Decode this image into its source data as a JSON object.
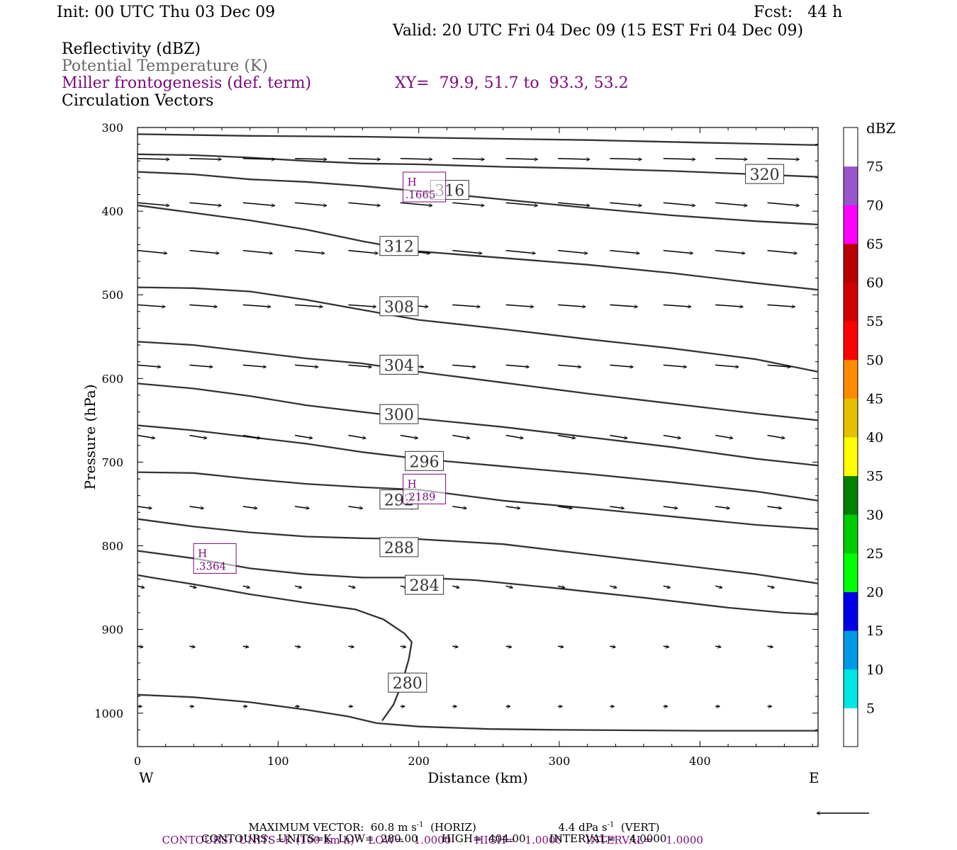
{
  "header": {
    "init": "Init: 00 UTC Thu 03 Dec 09",
    "fcst": "Fcst:   44 h",
    "valid": "Valid: 20 UTC Fri 04 Dec 09 (15 EST Fri 04 Dec 09)",
    "fields": [
      {
        "label": "Reflectivity (dBZ)",
        "color": "#000000"
      },
      {
        "label": "Potential Temperature (K)",
        "color": "#666666"
      },
      {
        "label": "Miller frontogenesis (def. term)",
        "color": "#7b0a7b"
      },
      {
        "label": "Circulation Vectors",
        "color": "#000000"
      }
    ],
    "xy": "XY=  79.9, 51.7 to  93.3, 53.2"
  },
  "footer": {
    "max_vector_prefix": "MAXIMUM VECTOR:  60.8 m s",
    "max_vector_horiz": "(HORIZ)",
    "max_vector_vert_prefix": "4.4 dPa s",
    "max_vector_vert_suffix": "(VERT)",
    "contours_purple": "CONTOURS:  UNITS=K (100 km h)",
    "contours_purple_tail": "  LOW=   1.0000       HIGH=   1.0000       INTERVAL=    1.0000",
    "contours_black": "CONTOURS:  UNITS=K  LOW=  280.00       HIGH=  404.00       INTERVAL=    4.0000",
    "exp": "-1"
  },
  "chart_data": {
    "type": "contour",
    "xlabel": "Distance (km)",
    "ylabel": "Pressure (hPa)",
    "x_ticks": [
      0,
      100,
      200,
      300,
      400
    ],
    "y_ticks": [
      300,
      400,
      500,
      600,
      700,
      800,
      900,
      1000
    ],
    "xlim": [
      0,
      484
    ],
    "ylim": [
      1040,
      300
    ],
    "x_end_labels": {
      "left": "W",
      "right": "E"
    },
    "theta_contours": [
      {
        "label": "280",
        "points": [
          [
            0,
            978
          ],
          [
            40,
            981
          ],
          [
            80,
            987
          ],
          [
            120,
            996
          ],
          [
            150,
            1004
          ],
          [
            170,
            1012
          ],
          [
            200,
            1016
          ],
          [
            250,
            1019
          ],
          [
            300,
            1020
          ],
          [
            400,
            1021
          ],
          [
            484,
            1021
          ]
        ]
      },
      {
        "label": "280",
        "points": [
          [
            174,
            1009
          ],
          [
            182,
            990
          ],
          [
            188,
            965
          ],
          [
            193,
            935
          ],
          [
            195,
            915
          ],
          [
            190,
            905
          ],
          [
            175,
            888
          ],
          [
            155,
            876
          ],
          [
            120,
            868
          ],
          [
            80,
            858
          ],
          [
            40,
            846
          ],
          [
            10,
            838
          ],
          [
            0,
            835
          ]
        ]
      },
      {
        "label": "284",
        "points": [
          [
            0,
            806
          ],
          [
            40,
            815
          ],
          [
            80,
            827
          ],
          [
            120,
            834
          ],
          [
            160,
            838
          ],
          [
            200,
            838
          ],
          [
            240,
            841
          ],
          [
            300,
            851
          ],
          [
            360,
            862
          ],
          [
            420,
            874
          ],
          [
            460,
            880
          ],
          [
            484,
            882
          ]
        ]
      },
      {
        "label": "288",
        "points": [
          [
            0,
            768
          ],
          [
            40,
            777
          ],
          [
            80,
            784
          ],
          [
            120,
            789
          ],
          [
            160,
            791
          ],
          [
            200,
            792
          ],
          [
            260,
            798
          ],
          [
            320,
            810
          ],
          [
            380,
            822
          ],
          [
            440,
            834
          ],
          [
            484,
            845
          ]
        ]
      },
      {
        "label": "292",
        "points": [
          [
            0,
            712
          ],
          [
            40,
            713
          ],
          [
            80,
            720
          ],
          [
            120,
            726
          ],
          [
            160,
            730
          ],
          [
            200,
            733
          ],
          [
            260,
            746
          ],
          [
            320,
            755
          ],
          [
            380,
            765
          ],
          [
            440,
            775
          ],
          [
            484,
            780
          ]
        ]
      },
      {
        "label": "296",
        "points": [
          [
            0,
            656
          ],
          [
            40,
            662
          ],
          [
            80,
            670
          ],
          [
            120,
            678
          ],
          [
            160,
            688
          ],
          [
            200,
            696
          ],
          [
            260,
            705
          ],
          [
            320,
            714
          ],
          [
            380,
            724
          ],
          [
            440,
            735
          ],
          [
            484,
            746
          ]
        ]
      },
      {
        "label": "300",
        "points": [
          [
            0,
            606
          ],
          [
            40,
            612
          ],
          [
            80,
            621
          ],
          [
            120,
            632
          ],
          [
            160,
            640
          ],
          [
            200,
            648
          ],
          [
            260,
            658
          ],
          [
            320,
            670
          ],
          [
            380,
            682
          ],
          [
            440,
            696
          ],
          [
            484,
            704
          ]
        ]
      },
      {
        "label": "304",
        "points": [
          [
            0,
            556
          ],
          [
            40,
            560
          ],
          [
            80,
            568
          ],
          [
            120,
            576
          ],
          [
            160,
            582
          ],
          [
            200,
            592
          ],
          [
            260,
            605
          ],
          [
            320,
            618
          ],
          [
            380,
            630
          ],
          [
            440,
            642
          ],
          [
            484,
            650
          ]
        ]
      },
      {
        "label": "308",
        "points": [
          [
            0,
            491
          ],
          [
            40,
            492
          ],
          [
            80,
            496
          ],
          [
            120,
            506
          ],
          [
            160,
            518
          ],
          [
            200,
            530
          ],
          [
            260,
            541
          ],
          [
            320,
            553
          ],
          [
            380,
            564
          ],
          [
            440,
            577
          ],
          [
            484,
            592
          ]
        ]
      },
      {
        "label": "312",
        "points": [
          [
            0,
            393
          ],
          [
            40,
            402
          ],
          [
            80,
            411
          ],
          [
            120,
            422
          ],
          [
            160,
            436
          ],
          [
            200,
            448
          ],
          [
            260,
            456
          ],
          [
            320,
            464
          ],
          [
            380,
            474
          ],
          [
            440,
            486
          ],
          [
            484,
            494
          ]
        ]
      },
      {
        "label": "316",
        "points": [
          [
            0,
            353
          ],
          [
            40,
            356
          ],
          [
            80,
            362
          ],
          [
            120,
            365
          ],
          [
            160,
            370
          ],
          [
            200,
            376
          ],
          [
            260,
            386
          ],
          [
            320,
            396
          ],
          [
            380,
            405
          ],
          [
            440,
            412
          ],
          [
            484,
            416
          ]
        ]
      },
      {
        "label": "320",
        "points": [
          [
            0,
            332
          ],
          [
            40,
            333
          ],
          [
            80,
            336
          ],
          [
            120,
            340
          ],
          [
            160,
            343
          ],
          [
            200,
            344
          ],
          [
            260,
            347
          ],
          [
            320,
            349
          ],
          [
            380,
            352
          ],
          [
            440,
            356
          ],
          [
            484,
            359
          ]
        ]
      },
      {
        "label": "",
        "points": [
          [
            0,
            308
          ],
          [
            80,
            310
          ],
          [
            160,
            311
          ],
          [
            240,
            313
          ],
          [
            320,
            315
          ],
          [
            400,
            318
          ],
          [
            484,
            321
          ]
        ]
      }
    ],
    "contour_labels": [
      {
        "text": "316",
        "x": 222,
        "y": 375
      },
      {
        "text": "320",
        "x": 446,
        "y": 356
      },
      {
        "text": "312",
        "x": 186,
        "y": 442
      },
      {
        "text": "308",
        "x": 186,
        "y": 514
      },
      {
        "text": "304",
        "x": 186,
        "y": 584
      },
      {
        "text": "300",
        "x": 186,
        "y": 643
      },
      {
        "text": "296",
        "x": 204,
        "y": 699
      },
      {
        "text": "292",
        "x": 186,
        "y": 745
      },
      {
        "text": "288",
        "x": 186,
        "y": 802
      },
      {
        "text": "284",
        "x": 204,
        "y": 847
      },
      {
        "text": "280",
        "x": 192,
        "y": 964
      }
    ],
    "frontogenesis_highs": [
      {
        "text": "H",
        "value": ".1665",
        "x": 204,
        "y": 372
      },
      {
        "text": "H",
        "value": ".2189",
        "x": 204,
        "y": 733
      },
      {
        "text": "H",
        "value": ".3364",
        "x": 55,
        "y": 816
      }
    ],
    "vector_levels": [
      {
        "p": 337,
        "u": 1.0,
        "w": 0.06
      },
      {
        "p": 390,
        "u": 1.0,
        "w": 0.18
      },
      {
        "p": 447,
        "u": 0.93,
        "w": 0.18
      },
      {
        "p": 512,
        "u": 0.87,
        "w": 0.12
      },
      {
        "p": 584,
        "u": 0.73,
        "w": 0.12
      },
      {
        "p": 668,
        "u": 0.55,
        "w": 0.18
      },
      {
        "p": 753,
        "u": 0.45,
        "w": 0.12
      },
      {
        "p": 848,
        "u": 0.22,
        "w": 0.12
      },
      {
        "p": 920,
        "u": 0.18,
        "w": 0.06
      },
      {
        "p": 992,
        "u": 0.14,
        "w": 0.0
      }
    ],
    "vector_x": [
      0,
      37,
      75,
      112,
      150,
      187,
      224,
      262,
      299,
      336,
      374,
      411,
      448
    ],
    "colorbar": {
      "unit": "dBZ",
      "labels": [
        "5",
        "10",
        "15",
        "20",
        "25",
        "30",
        "35",
        "40",
        "45",
        "50",
        "55",
        "60",
        "65",
        "70",
        "75"
      ],
      "colors": [
        "#ffffff",
        "#00e5e5",
        "#0099e5",
        "#0000e5",
        "#00ff00",
        "#00cc00",
        "#008000",
        "#ffff00",
        "#e5c000",
        "#ff8c00",
        "#ff0000",
        "#d10000",
        "#b80000",
        "#ff00ff",
        "#9955cc",
        "#ffffff"
      ]
    }
  }
}
